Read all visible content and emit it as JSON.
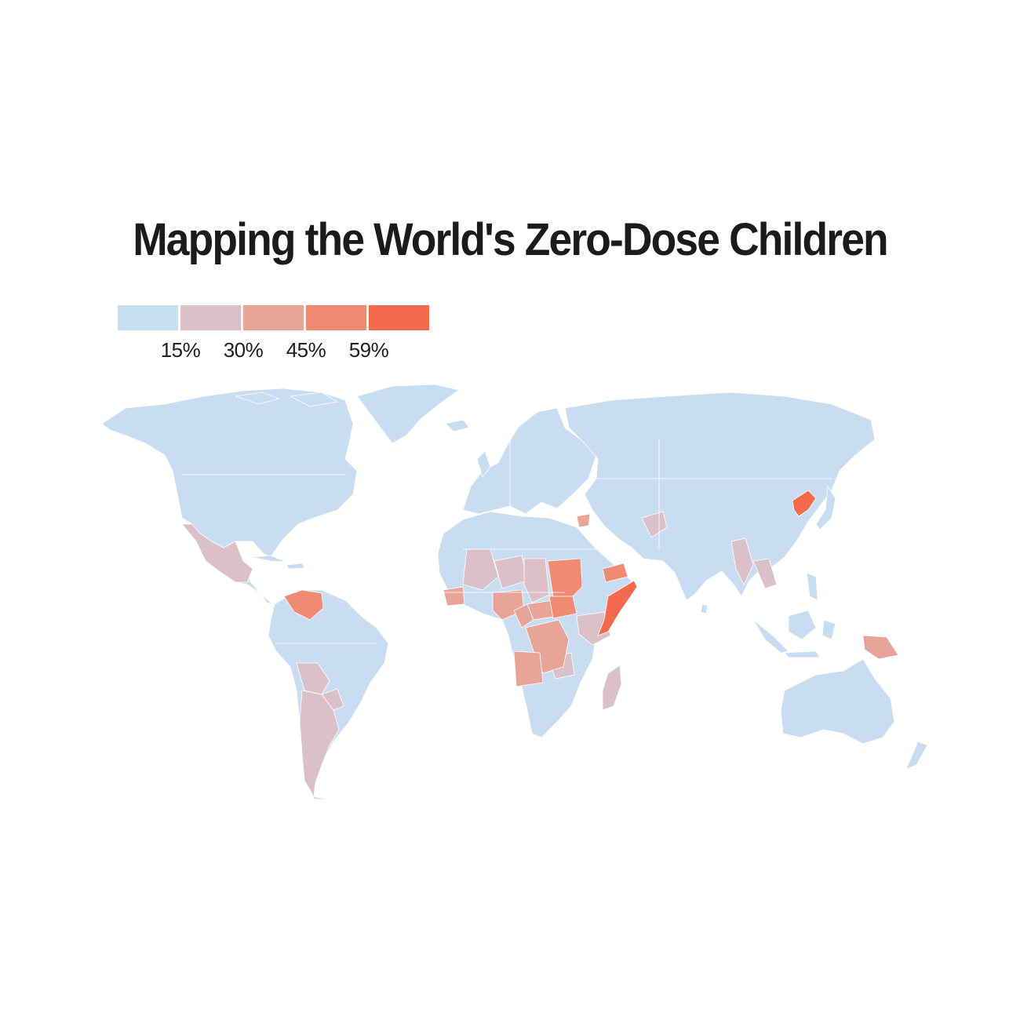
{
  "title": "Mapping the World's Zero-Dose Children",
  "legend": {
    "colors": [
      "#c9ddf2",
      "#dcc0c7",
      "#e8a597",
      "#f08a73",
      "#f36b4c"
    ],
    "ticks": [
      "15%",
      "30%",
      "45%",
      "59%"
    ]
  },
  "map": {
    "colors": {
      "background": "#ffffff",
      "land_default": "#c9ddf2",
      "borders": "#ffffff"
    },
    "classes": {
      "bin2_15_30": [
        "Mexico",
        "Bolivia",
        "Argentina",
        "Paraguay",
        "Guatemala",
        "Mali",
        "Niger",
        "Chad",
        "Ethiopia",
        "Tanzania",
        "Madagascar",
        "Afghanistan",
        "Myanmar",
        "Laos"
      ],
      "bin3_30_45": [
        "Nigeria",
        "Cameroon",
        "Central African Republic",
        "Democratic Republic of the Congo",
        "Angola",
        "Guinea",
        "Syria",
        "Papua New Guinea"
      ],
      "bin4_45_59": [
        "Venezuela",
        "Sudan",
        "South Sudan",
        "Yemen"
      ],
      "bin5_59_plus": [
        "Somalia",
        "North Korea"
      ]
    }
  }
}
